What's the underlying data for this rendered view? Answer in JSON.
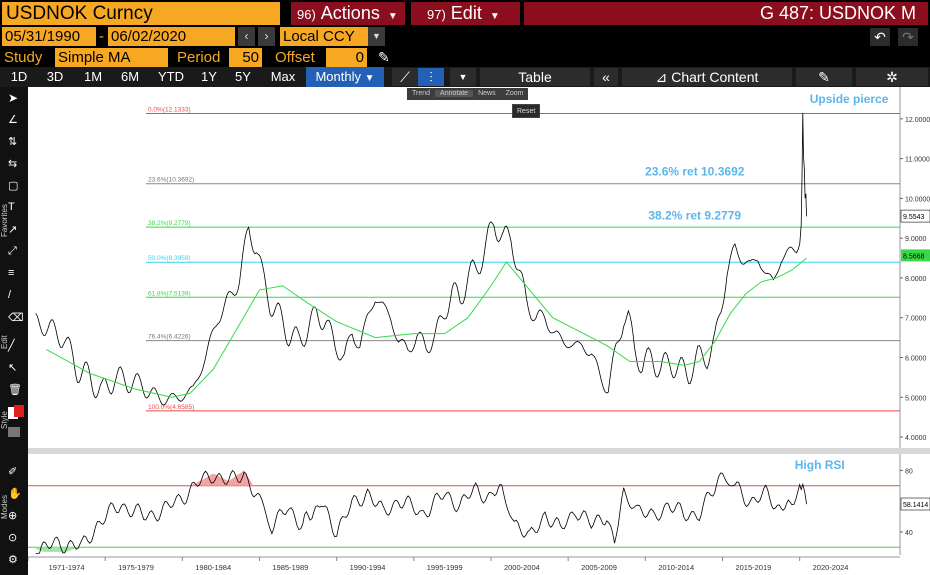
{
  "topbar": {
    "ticker": "USDNOK Curncy",
    "actions_num": "96)",
    "actions_label": "Actions",
    "edit_num": "97)",
    "edit_label": "Edit",
    "title": "G 487: USDNOK M"
  },
  "dates": {
    "start": "05/31/1990",
    "end": "06/02/2020",
    "currency": "Local CCY"
  },
  "study": {
    "study_label": "Study",
    "study_value": "Simple MA",
    "period_label": "Period",
    "period_value": "50",
    "offset_label": "Offset",
    "offset_value": "0"
  },
  "timeframes": [
    "1D",
    "3D",
    "1M",
    "6M",
    "YTD",
    "1Y",
    "5Y",
    "Max"
  ],
  "frequency": "Monthly",
  "toolbar": {
    "table_label": "Table",
    "chart_content_label": "Chart Content"
  },
  "float_tools": [
    "Trend",
    "Annotate",
    "News",
    "Zoom"
  ],
  "reset_label": "Reset",
  "side_labels": {
    "favorites": "Favorites",
    "edit": "Edit",
    "style": "Style",
    "modes": "Modes"
  },
  "colors": {
    "orange": "#f7a823",
    "maroon": "#8b0e1e",
    "blue_accent": "#2360b6",
    "price": "#ffffff",
    "ma": "#39d84a",
    "annot": "#5db6ea"
  },
  "chart_data": [
    {
      "type": "line",
      "panel": "price",
      "y_ticks": [
        "4.0000",
        "5.0000",
        "6.0000",
        "7.0000",
        "8.0000",
        "9.0000",
        "10.0000",
        "11.0000",
        "12.0000"
      ],
      "ylim": [
        3.8,
        12.7
      ],
      "xlim": [
        1970,
        2026.5
      ],
      "last_price_label": "9.5543",
      "ma_label": "8.5668",
      "fib_levels": [
        {
          "label": "0.0%(12.1333)",
          "value": 12.1333,
          "color": "#e84a4a"
        },
        {
          "label": "23.6%(10.3692)",
          "value": 10.3692,
          "color": "#888888"
        },
        {
          "label": "38.2%(9.2779)",
          "value": 9.2779,
          "color": "#39d84a"
        },
        {
          "label": "50.0%(8.3959)",
          "value": 8.3959,
          "color": "#33d6e8"
        },
        {
          "label": "61.8%(7.5139)",
          "value": 7.5139,
          "color": "#39d84a"
        },
        {
          "label": "76.4%(6.4226)",
          "value": 6.4226,
          "color": "#888888"
        },
        {
          "label": "100.0%(4.6585)",
          "value": 4.6585,
          "color": "#e84a4a"
        }
      ],
      "annotations": [
        {
          "text": "Upside pierce",
          "x": 2023.2,
          "y": 12.4
        },
        {
          "text": "23.6% ret 10.3692",
          "x": 2013.2,
          "y": 10.57
        },
        {
          "text": "38.2% ret 9.2779",
          "x": 2013.2,
          "y": 9.47
        }
      ],
      "series": [
        {
          "name": "USDNOK",
          "x": [
            1970.5,
            1971.5,
            1972.3,
            1973.2,
            1974.0,
            1974.8,
            1975.6,
            1976.5,
            1977.4,
            1978.3,
            1979.1,
            1979.9,
            1980.7,
            1981.5,
            1982.3,
            1983.1,
            1983.7,
            1984.3,
            1984.8,
            1985.2,
            1985.7,
            1986.3,
            1986.9,
            1987.5,
            1988.1,
            1988.7,
            1989.3,
            1989.9,
            1990.5,
            1991.0,
            1991.5,
            1992.0,
            1992.5,
            1993.0,
            1993.5,
            1994.0,
            1994.6,
            1995.2,
            1995.8,
            1996.4,
            1997.0,
            1997.5,
            1998.0,
            1998.5,
            1999.0,
            1999.6,
            2000.2,
            2000.8,
            2001.3,
            2001.8,
            2002.3,
            2002.9,
            2003.5,
            2004.1,
            2004.7,
            2005.3,
            2005.9,
            2006.5,
            2007.1,
            2007.6,
            2008.1,
            2008.6,
            2008.9,
            2009.3,
            2009.8,
            2010.4,
            2011.0,
            2011.6,
            2012.2,
            2012.8,
            2013.4,
            2014.0,
            2014.5,
            2014.9,
            2015.3,
            2015.8,
            2016.3,
            2016.8,
            2017.3,
            2017.8,
            2018.3,
            2018.8,
            2019.3,
            2019.8,
            2020.0,
            2020.1,
            2020.2,
            2020.3,
            2020.4,
            2020.45
          ],
          "y": [
            6.9,
            6.7,
            6.5,
            5.7,
            5.5,
            5.1,
            5.5,
            5.4,
            5.3,
            5.0,
            4.95,
            5.0,
            5.2,
            6.0,
            7.0,
            7.5,
            8.0,
            9.2,
            8.8,
            8.0,
            7.4,
            7.0,
            6.6,
            6.4,
            6.7,
            7.1,
            6.9,
            6.3,
            6.0,
            6.6,
            6.3,
            7.0,
            7.5,
            7.3,
            7.0,
            6.4,
            6.2,
            6.5,
            6.3,
            6.5,
            7.2,
            7.6,
            7.5,
            8.0,
            8.2,
            8.7,
            9.4,
            9.0,
            9.0,
            8.2,
            7.4,
            7.0,
            7.0,
            6.6,
            6.4,
            6.3,
            6.3,
            6.1,
            5.5,
            5.2,
            6.2,
            7.0,
            7.0,
            6.2,
            5.8,
            6.0,
            5.7,
            5.9,
            5.7,
            5.6,
            6.0,
            6.0,
            6.4,
            7.2,
            8.2,
            8.7,
            8.5,
            8.3,
            8.5,
            8.1,
            7.9,
            8.5,
            8.6,
            8.8,
            9.0,
            9.4,
            12.1,
            10.6,
            9.9,
            9.55
          ]
        },
        {
          "name": "Simple MA 50",
          "x": [
            1971.2,
            1974.0,
            1977.0,
            1979.3,
            1980.5,
            1982.0,
            1983.5,
            1985.0,
            1986.5,
            1988.0,
            1990.0,
            1992.5,
            1995.0,
            1997.0,
            1998.5,
            2000.0,
            2001.0,
            2002.5,
            2004.0,
            2006.0,
            2007.5,
            2009.0,
            2011.0,
            2012.5,
            2013.5,
            2014.5,
            2015.5,
            2016.5,
            2017.5,
            2018.5,
            2019.5,
            2020.45
          ],
          "y": [
            6.2,
            5.6,
            5.2,
            5.0,
            5.1,
            5.7,
            6.7,
            7.7,
            7.8,
            7.4,
            6.9,
            6.5,
            6.6,
            6.6,
            7.0,
            7.8,
            8.4,
            7.7,
            7.0,
            6.6,
            6.3,
            5.9,
            5.9,
            5.8,
            5.9,
            6.4,
            7.1,
            7.6,
            7.9,
            8.0,
            8.2,
            8.5
          ]
        }
      ]
    },
    {
      "type": "line",
      "panel": "rsi",
      "title": "High RSI",
      "ylim": [
        25,
        90
      ],
      "y_ticks": [
        "40",
        "80"
      ],
      "last_label": "58.1414",
      "levels": [
        {
          "value": 70,
          "color": "#e84a4a"
        },
        {
          "value": 30,
          "color": "#39d84a"
        }
      ],
      "x_ticks": [
        "1971-1974",
        "1975-1979",
        "1980-1984",
        "1985-1989",
        "1990-1994",
        "1995-1999",
        "2000-2004",
        "2005-2009",
        "2010-2014",
        "2015-2019",
        "2020-2024"
      ],
      "series": [
        {
          "name": "RSI",
          "x": [
            1970.5,
            1972.0,
            1973.5,
            1974.5,
            1976.0,
            1977.5,
            1979.0,
            1980.0,
            1981.0,
            1982.0,
            1983.0,
            1984.0,
            1985.0,
            1985.8,
            1986.8,
            1987.8,
            1989.0,
            1990.0,
            1991.0,
            1992.0,
            1993.0,
            1994.0,
            1995.5,
            1997.0,
            1998.0,
            1999.0,
            2000.0,
            2000.7,
            2001.5,
            2002.5,
            2003.5,
            2004.5,
            2005.5,
            2006.5,
            2007.5,
            2008.0,
            2008.6,
            2009.5,
            2010.5,
            2011.5,
            2012.5,
            2013.5,
            2014.5,
            2015.0,
            2015.8,
            2016.8,
            2017.8,
            2018.8,
            2019.5,
            2020.0,
            2020.2,
            2020.45
          ],
          "y": [
            27,
            33,
            30,
            45,
            58,
            50,
            55,
            63,
            71,
            78,
            72,
            79,
            58,
            45,
            54,
            46,
            58,
            41,
            57,
            66,
            52,
            61,
            52,
            64,
            58,
            67,
            63,
            70,
            48,
            35,
            52,
            41,
            55,
            44,
            52,
            31,
            68,
            56,
            48,
            59,
            50,
            53,
            67,
            79,
            69,
            60,
            64,
            55,
            60,
            65,
            73,
            58
          ]
        }
      ]
    }
  ]
}
